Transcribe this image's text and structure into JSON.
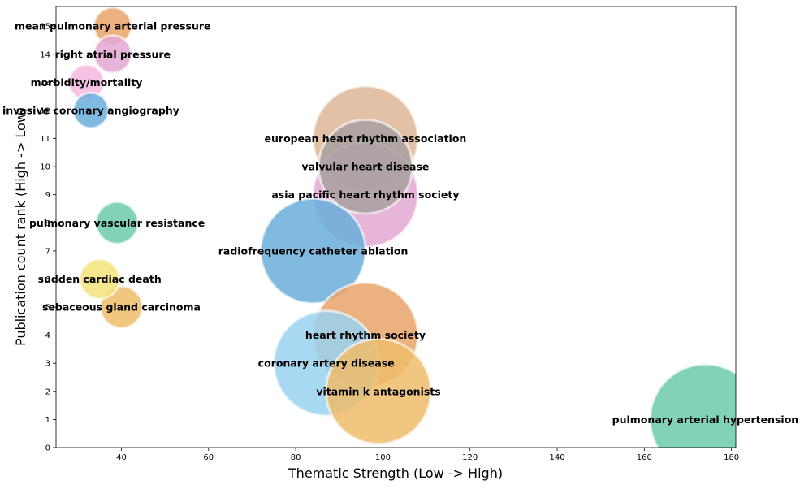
{
  "chart_data": {
    "type": "scatter",
    "title": "",
    "xlabel": "Thematic Strength (Low -> High)",
    "ylabel": "Publication count rank (High -> Low)",
    "xlim": [
      25,
      181
    ],
    "ylim": [
      0,
      15.7
    ],
    "xticks": [
      40,
      60,
      80,
      100,
      120,
      140,
      160,
      180
    ],
    "yticks": [
      0,
      1,
      2,
      3,
      4,
      5,
      6,
      7,
      8,
      9,
      10,
      11,
      12,
      13,
      14,
      15
    ],
    "grid": false,
    "points": [
      {
        "label": "mean pulmonary arterial pressure",
        "x": 38,
        "y": 15,
        "size": 0.34,
        "color": "#e8a36a"
      },
      {
        "label": "right atrial pressure",
        "x": 38,
        "y": 14,
        "size": 0.34,
        "color": "#e3a8d2"
      },
      {
        "label": "morbidity/mortality",
        "x": 32,
        "y": 13,
        "size": 0.32,
        "color": "#f6b8e0"
      },
      {
        "label": "invasive coronary angiography",
        "x": 33,
        "y": 12,
        "size": 0.32,
        "color": "#6aaedb"
      },
      {
        "label": "european heart rhythm association",
        "x": 96,
        "y": 11,
        "size": 0.95,
        "color": "#ddb697"
      },
      {
        "label": "valvular heart disease",
        "x": 96,
        "y": 10,
        "size": 0.85,
        "color": "#a8a0a0"
      },
      {
        "label": "asia pacific heart rhythm society",
        "x": 96,
        "y": 9,
        "size": 0.95,
        "color": "#e3a8d2"
      },
      {
        "label": "pulmonary vascular resistance",
        "x": 39,
        "y": 8,
        "size": 0.38,
        "color": "#6ccaad"
      },
      {
        "label": "radiofrequency catheter ablation",
        "x": 84,
        "y": 7,
        "size": 0.95,
        "color": "#6aaedb"
      },
      {
        "label": "sudden cardiac death",
        "x": 35,
        "y": 6,
        "size": 0.36,
        "color": "#f3e37a"
      },
      {
        "label": "sebaceous gland carcinoma",
        "x": 40,
        "y": 5,
        "size": 0.38,
        "color": "#efbc6a"
      },
      {
        "label": "heart rhythm society",
        "x": 96,
        "y": 4,
        "size": 0.95,
        "color": "#e8a36a"
      },
      {
        "label": "coronary artery disease",
        "x": 87,
        "y": 3,
        "size": 0.95,
        "color": "#9ad1f0"
      },
      {
        "label": "vitamin k antagonists",
        "x": 99,
        "y": 2,
        "size": 0.95,
        "color": "#efbc6a"
      },
      {
        "label": "pulmonary arterial hypertension",
        "x": 174,
        "y": 1,
        "size": 1.0,
        "color": "#6ccaad"
      }
    ]
  }
}
